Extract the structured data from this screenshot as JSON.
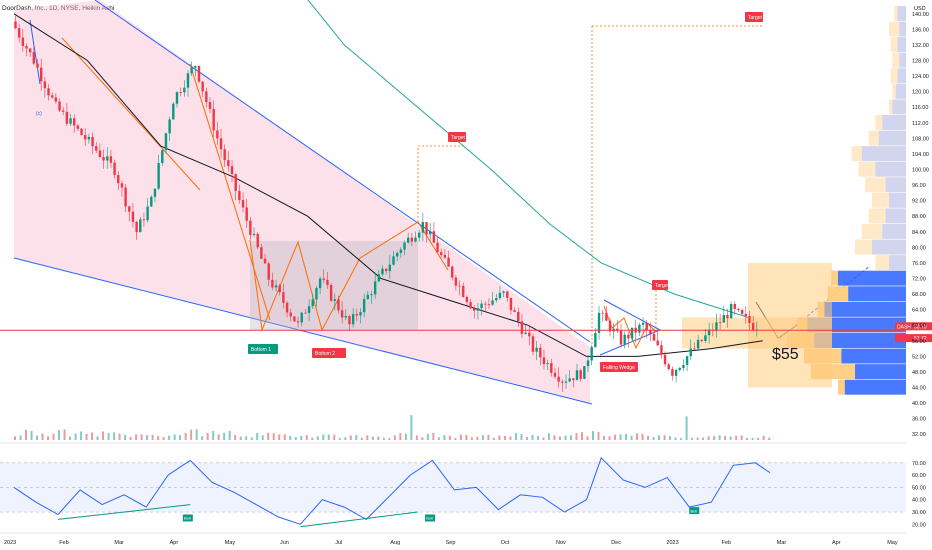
{
  "header": {
    "symbol_line": "DoorDash, Inc., 1D, NYSE, Heikin Ashi"
  },
  "chart_data": [
    {
      "type": "candlestick",
      "title": "DoorDash, Inc., 1D, NYSE, Heikin Ashi",
      "currency": "USD",
      "price_axis": {
        "ticks": [
          140,
          136,
          132,
          128,
          124,
          120,
          116,
          112,
          108,
          104,
          100,
          96,
          92,
          88,
          84,
          80,
          76,
          72,
          68,
          64,
          60,
          56,
          52,
          48,
          44,
          40,
          36,
          32
        ],
        "range": [
          30,
          142
        ],
        "position": "right"
      },
      "time_axis": {
        "labels": [
          "2023",
          "Feb",
          "Mar",
          "Apr",
          "May",
          "Jun",
          "Jul",
          "Aug",
          "Sep",
          "Oct",
          "Nov",
          "Dec",
          "2023",
          "Feb",
          "Mar",
          "Apr",
          "May"
        ]
      },
      "price_tags": [
        {
          "text": "DASH",
          "value": "58.70",
          "color": "#f23645"
        },
        {
          "text": "",
          "value": "57.72",
          "color": "#f23645"
        }
      ],
      "horizontal_line": {
        "value": 58.7,
        "color": "#f23645"
      },
      "annotations": [
        {
          "text": "(c)",
          "color": "#2962ff"
        },
        {
          "text": "Bottom 1",
          "color": "#089981"
        },
        {
          "text": "Bottom 2",
          "color": "#f23645"
        },
        {
          "text": "Target",
          "color": "#f23645"
        },
        {
          "text": "Target",
          "color": "#f23645"
        },
        {
          "text": "Target",
          "color": "#f23645"
        },
        {
          "text": "Falling Wedge",
          "color": "#f23645"
        },
        {
          "text": "$55",
          "color": "#131722"
        }
      ],
      "candle_path": [
        {
          "t": 0,
          "p": 138
        },
        {
          "t": 6,
          "p": 128
        },
        {
          "t": 12,
          "p": 116
        },
        {
          "t": 20,
          "p": 108
        },
        {
          "t": 28,
          "p": 100
        },
        {
          "t": 34,
          "p": 84
        },
        {
          "t": 38,
          "p": 92
        },
        {
          "t": 44,
          "p": 118
        },
        {
          "t": 50,
          "p": 127
        },
        {
          "t": 56,
          "p": 108
        },
        {
          "t": 62,
          "p": 92
        },
        {
          "t": 70,
          "p": 72
        },
        {
          "t": 78,
          "p": 60
        },
        {
          "t": 84,
          "p": 72
        },
        {
          "t": 92,
          "p": 60
        },
        {
          "t": 100,
          "p": 72
        },
        {
          "t": 106,
          "p": 80
        },
        {
          "t": 112,
          "p": 86
        },
        {
          "t": 118,
          "p": 76
        },
        {
          "t": 126,
          "p": 64
        },
        {
          "t": 134,
          "p": 68
        },
        {
          "t": 142,
          "p": 54
        },
        {
          "t": 150,
          "p": 46
        },
        {
          "t": 156,
          "p": 48
        },
        {
          "t": 160,
          "p": 63
        },
        {
          "t": 166,
          "p": 56
        },
        {
          "t": 172,
          "p": 60
        },
        {
          "t": 180,
          "p": 48
        },
        {
          "t": 188,
          "p": 56
        },
        {
          "t": 196,
          "p": 64
        },
        {
          "t": 202,
          "p": 60
        }
      ],
      "moving_averages": [
        {
          "color": "#26a69a",
          "points": [
            {
              "t": 78,
              "p": 146
            },
            {
              "t": 90,
              "p": 132
            },
            {
              "t": 110,
              "p": 116
            },
            {
              "t": 130,
              "p": 100
            },
            {
              "t": 146,
              "p": 86
            },
            {
              "t": 160,
              "p": 76
            },
            {
              "t": 180,
              "p": 68
            },
            {
              "t": 200,
              "p": 62
            }
          ]
        },
        {
          "color": "#131722",
          "points": [
            {
              "t": 0,
              "p": 140
            },
            {
              "t": 20,
              "p": 128
            },
            {
              "t": 40,
              "p": 106
            },
            {
              "t": 60,
              "p": 98
            },
            {
              "t": 80,
              "p": 88
            },
            {
              "t": 100,
              "p": 72
            },
            {
              "t": 120,
              "p": 66
            },
            {
              "t": 140,
              "p": 60
            },
            {
              "t": 156,
              "p": 52
            },
            {
              "t": 170,
              "p": 52
            },
            {
              "t": 190,
              "p": 54
            },
            {
              "t": 204,
              "p": 56
            }
          ]
        }
      ],
      "volume_profile": [
        {
          "price": 140,
          "value": 5,
          "up": 7
        },
        {
          "price": 136,
          "value": 4,
          "up": 10
        },
        {
          "price": 132,
          "value": 5,
          "up": 9
        },
        {
          "price": 128,
          "value": 4,
          "up": 8
        },
        {
          "price": 124,
          "value": 5,
          "up": 9
        },
        {
          "price": 120,
          "value": 6,
          "up": 8
        },
        {
          "price": 116,
          "value": 8,
          "up": 10
        },
        {
          "price": 112,
          "value": 14,
          "up": 18
        },
        {
          "price": 108,
          "value": 16,
          "up": 22
        },
        {
          "price": 104,
          "value": 26,
          "up": 32
        },
        {
          "price": 100,
          "value": 18,
          "up": 28
        },
        {
          "price": 96,
          "value": 12,
          "up": 24
        },
        {
          "price": 92,
          "value": 10,
          "up": 20
        },
        {
          "price": 88,
          "value": 12,
          "up": 22
        },
        {
          "price": 84,
          "value": 14,
          "up": 26
        },
        {
          "price": 80,
          "value": 20,
          "up": 30
        },
        {
          "price": 76,
          "value": 10,
          "up": 18
        },
        {
          "price": 72,
          "value": 40,
          "up": 44
        },
        {
          "price": 68,
          "value": 34,
          "up": 46
        },
        {
          "price": 64,
          "value": 48,
          "up": 52
        },
        {
          "price": 60,
          "value": 58,
          "up": 64
        },
        {
          "price": 56,
          "value": 54,
          "up": 70
        },
        {
          "price": 52,
          "value": 38,
          "up": 60
        },
        {
          "price": 48,
          "value": 30,
          "up": 56
        },
        {
          "price": 44,
          "value": 36,
          "up": 40
        }
      ]
    },
    {
      "type": "bar",
      "title": "Volume",
      "categories": [
        "Jan",
        "Feb",
        "Mar",
        "Apr",
        "May",
        "Jun",
        "Jul",
        "Aug",
        "Sep",
        "Oct",
        "Nov",
        "Dec",
        "Jan",
        "Feb"
      ],
      "values": [
        6,
        5,
        4,
        6,
        4,
        4,
        3,
        4,
        3,
        4,
        5,
        4,
        3,
        3
      ]
    },
    {
      "type": "line",
      "title": "RSI",
      "y_axis": {
        "ticks": [
          70.0,
          60.0,
          50.0,
          40.0,
          30.0,
          20.0
        ],
        "range": [
          17,
          78
        ],
        "band": [
          30,
          70
        ]
      },
      "points": [
        {
          "t": 0,
          "v": 50
        },
        {
          "t": 6,
          "v": 38
        },
        {
          "t": 12,
          "v": 28
        },
        {
          "t": 18,
          "v": 48
        },
        {
          "t": 24,
          "v": 36
        },
        {
          "t": 30,
          "v": 44
        },
        {
          "t": 36,
          "v": 34
        },
        {
          "t": 42,
          "v": 60
        },
        {
          "t": 48,
          "v": 72
        },
        {
          "t": 54,
          "v": 54
        },
        {
          "t": 60,
          "v": 46
        },
        {
          "t": 66,
          "v": 36
        },
        {
          "t": 72,
          "v": 26
        },
        {
          "t": 78,
          "v": 20
        },
        {
          "t": 84,
          "v": 40
        },
        {
          "t": 90,
          "v": 34
        },
        {
          "t": 96,
          "v": 24
        },
        {
          "t": 102,
          "v": 42
        },
        {
          "t": 108,
          "v": 60
        },
        {
          "t": 114,
          "v": 72
        },
        {
          "t": 120,
          "v": 48
        },
        {
          "t": 126,
          "v": 50
        },
        {
          "t": 132,
          "v": 32
        },
        {
          "t": 138,
          "v": 44
        },
        {
          "t": 144,
          "v": 42
        },
        {
          "t": 150,
          "v": 30
        },
        {
          "t": 156,
          "v": 40
        },
        {
          "t": 160,
          "v": 74
        },
        {
          "t": 166,
          "v": 56
        },
        {
          "t": 172,
          "v": 50
        },
        {
          "t": 178,
          "v": 58
        },
        {
          "t": 184,
          "v": 34
        },
        {
          "t": 190,
          "v": 38
        },
        {
          "t": 196,
          "v": 68
        },
        {
          "t": 202,
          "v": 70
        },
        {
          "t": 206,
          "v": 62
        }
      ],
      "annotations": [
        {
          "text": "Bull",
          "color": "#089981"
        },
        {
          "text": "Bull",
          "color": "#089981"
        },
        {
          "text": "Bull",
          "color": "#089981"
        }
      ]
    }
  ]
}
